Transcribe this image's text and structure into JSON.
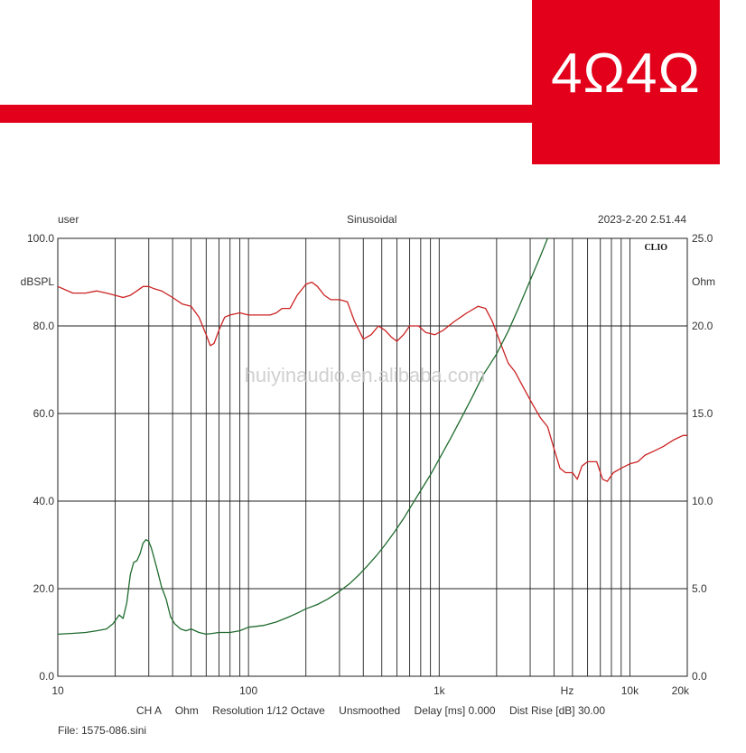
{
  "logo": {
    "text": "4Ω4Ω",
    "color": "#e2001a"
  },
  "watermark": "huiyinaudio.en.alibaba.com",
  "chart_data": {
    "type": "line",
    "header": {
      "left": "user",
      "center": "Sinusoidal",
      "right": "2023-2-20 2.51.44"
    },
    "brand": "CLIO",
    "y_left": {
      "label": "dBSPL",
      "range": [
        0,
        100
      ],
      "ticks": [
        "100.0",
        "80.0",
        "60.0",
        "40.0",
        "20.0",
        "0.0"
      ]
    },
    "y_right": {
      "label": "Ohm",
      "range": [
        0,
        25
      ],
      "ticks": [
        "25.0",
        "20.0",
        "15.0",
        "10.0",
        "5.0",
        "0.0"
      ]
    },
    "x_axis": {
      "scale": "log",
      "range": [
        10,
        20000
      ],
      "unit_label": "Hz",
      "ticks": [
        {
          "value": 10,
          "label": "10"
        },
        {
          "value": 100,
          "label": "100"
        },
        {
          "value": 1000,
          "label": "1k"
        },
        {
          "value": 10000,
          "label": "10k"
        },
        {
          "value": 20000,
          "label": "20k"
        }
      ]
    },
    "grid": true,
    "series": [
      {
        "axis": "left",
        "color": "#cc2222",
        "points": [
          [
            10,
            89
          ],
          [
            12,
            87.5
          ],
          [
            14,
            87.5
          ],
          [
            16,
            88
          ],
          [
            18,
            87.5
          ],
          [
            20,
            87
          ],
          [
            22,
            86.5
          ],
          [
            24,
            87
          ],
          [
            26,
            88
          ],
          [
            28,
            89
          ],
          [
            30,
            89
          ],
          [
            32,
            88.5
          ],
          [
            35,
            88
          ],
          [
            40,
            86.5
          ],
          [
            45,
            85
          ],
          [
            50,
            84.5
          ],
          [
            55,
            82
          ],
          [
            60,
            78
          ],
          [
            63,
            75.5
          ],
          [
            66,
            76
          ],
          [
            70,
            79
          ],
          [
            75,
            82
          ],
          [
            80,
            82.5
          ],
          [
            90,
            83
          ],
          [
            100,
            82.5
          ],
          [
            110,
            82.5
          ],
          [
            120,
            82.5
          ],
          [
            130,
            82.5
          ],
          [
            140,
            83
          ],
          [
            150,
            84
          ],
          [
            165,
            84
          ],
          [
            180,
            87
          ],
          [
            200,
            89.5
          ],
          [
            215,
            90
          ],
          [
            230,
            89
          ],
          [
            250,
            87
          ],
          [
            270,
            86
          ],
          [
            300,
            86
          ],
          [
            330,
            85.5
          ],
          [
            360,
            81
          ],
          [
            400,
            77
          ],
          [
            440,
            78
          ],
          [
            480,
            80
          ],
          [
            520,
            79
          ],
          [
            560,
            77.5
          ],
          [
            600,
            76.5
          ],
          [
            650,
            78
          ],
          [
            700,
            80
          ],
          [
            780,
            80
          ],
          [
            850,
            78.5
          ],
          [
            950,
            78
          ],
          [
            1050,
            79
          ],
          [
            1200,
            81
          ],
          [
            1400,
            83
          ],
          [
            1600,
            84.5
          ],
          [
            1750,
            84
          ],
          [
            1900,
            81
          ],
          [
            2100,
            76
          ],
          [
            2300,
            71.5
          ],
          [
            2500,
            69.5
          ],
          [
            2800,
            65.5
          ],
          [
            3100,
            62
          ],
          [
            3400,
            59
          ],
          [
            3700,
            57
          ],
          [
            4000,
            52
          ],
          [
            4300,
            47.5
          ],
          [
            4600,
            46.5
          ],
          [
            5000,
            46.5
          ],
          [
            5300,
            45
          ],
          [
            5600,
            48
          ],
          [
            6000,
            49
          ],
          [
            6700,
            49
          ],
          [
            7200,
            45
          ],
          [
            7600,
            44.5
          ],
          [
            8200,
            46.5
          ],
          [
            9000,
            47.5
          ],
          [
            10000,
            48.5
          ],
          [
            11000,
            49
          ],
          [
            12000,
            50.5
          ],
          [
            13500,
            51.5
          ],
          [
            15000,
            52.5
          ],
          [
            17000,
            54
          ],
          [
            19000,
            55
          ],
          [
            20000,
            55
          ]
        ]
      },
      {
        "axis": "right",
        "color": "#1f6b2e",
        "points": [
          [
            10,
            2.4
          ],
          [
            12,
            2.45
          ],
          [
            14,
            2.5
          ],
          [
            16,
            2.6
          ],
          [
            18,
            2.7
          ],
          [
            19.5,
            3.0
          ],
          [
            21,
            3.5
          ],
          [
            22,
            3.3
          ],
          [
            23,
            4.2
          ],
          [
            24,
            5.8
          ],
          [
            25,
            6.5
          ],
          [
            26,
            6.6
          ],
          [
            27,
            7.0
          ],
          [
            28,
            7.6
          ],
          [
            29,
            7.8
          ],
          [
            30,
            7.7
          ],
          [
            31,
            7.3
          ],
          [
            33,
            6.2
          ],
          [
            35,
            5.1
          ],
          [
            37,
            4.4
          ],
          [
            39,
            3.4
          ],
          [
            41,
            3.0
          ],
          [
            44,
            2.7
          ],
          [
            47,
            2.6
          ],
          [
            50,
            2.7
          ],
          [
            55,
            2.5
          ],
          [
            60,
            2.4
          ],
          [
            65,
            2.45
          ],
          [
            70,
            2.5
          ],
          [
            80,
            2.5
          ],
          [
            90,
            2.6
          ],
          [
            100,
            2.8
          ],
          [
            110,
            2.85
          ],
          [
            120,
            2.9
          ],
          [
            140,
            3.1
          ],
          [
            160,
            3.35
          ],
          [
            180,
            3.6
          ],
          [
            200,
            3.85
          ],
          [
            230,
            4.1
          ],
          [
            260,
            4.4
          ],
          [
            300,
            4.85
          ],
          [
            340,
            5.3
          ],
          [
            380,
            5.8
          ],
          [
            420,
            6.3
          ],
          [
            470,
            6.9
          ],
          [
            520,
            7.5
          ],
          [
            580,
            8.2
          ],
          [
            650,
            9.0
          ],
          [
            720,
            9.8
          ],
          [
            800,
            10.6
          ],
          [
            900,
            11.5
          ],
          [
            1000,
            12.4
          ],
          [
            1150,
            13.6
          ],
          [
            1300,
            14.7
          ],
          [
            1500,
            16.0
          ],
          [
            1700,
            17.2
          ],
          [
            2000,
            18.4
          ],
          [
            2300,
            19.7
          ],
          [
            2600,
            21.0
          ],
          [
            3000,
            22.6
          ],
          [
            3400,
            24.0
          ],
          [
            3700,
            25.0
          ]
        ]
      }
    ],
    "footer": {
      "line1": [
        "CH A",
        "Ohm",
        "Resolution 1/12 Octave",
        "Unsmoothed",
        "Delay [ms] 0.000",
        "Dist Rise [dB] 30.00"
      ],
      "line2": "File: 1575-086.sini"
    }
  }
}
